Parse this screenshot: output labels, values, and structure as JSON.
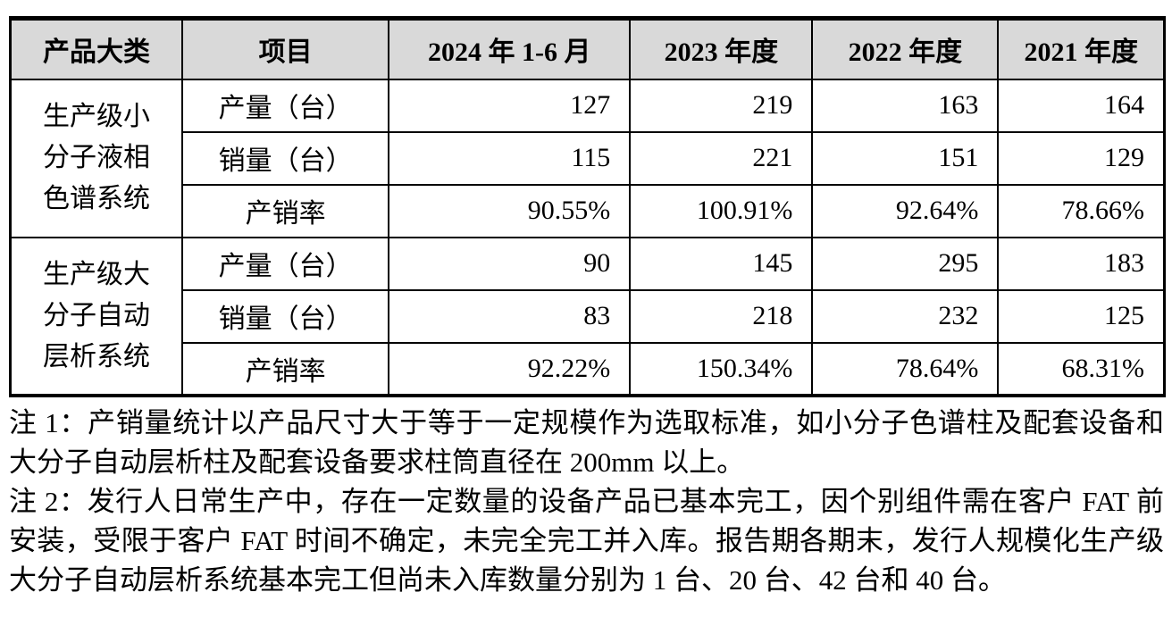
{
  "colors": {
    "header_bg": "#d9d9d9",
    "border": "#000000",
    "text": "#000000",
    "page_bg": "#ffffff"
  },
  "table": {
    "headers": {
      "category": "产品大类",
      "item": "项目",
      "period1": "2024 年 1-6 月",
      "period2": "2023 年度",
      "period3": "2022 年度",
      "period4": "2021 年度"
    },
    "groups": [
      {
        "category": "生产级小分子液相色谱系统",
        "category_lines": [
          "生产级小",
          "分子液相",
          "色谱系统"
        ],
        "rows": [
          {
            "item": "产量（台）",
            "values": [
              "127",
              "219",
              "163",
              "164"
            ]
          },
          {
            "item": "销量（台）",
            "values": [
              "115",
              "221",
              "151",
              "129"
            ]
          },
          {
            "item": "产销率",
            "values": [
              "90.55%",
              "100.91%",
              "92.64%",
              "78.66%"
            ]
          }
        ]
      },
      {
        "category": "生产级大分子自动层析系统",
        "category_lines": [
          "生产级大",
          "分子自动",
          "层析系统"
        ],
        "rows": [
          {
            "item": "产量（台）",
            "values": [
              "90",
              "145",
              "295",
              "183"
            ]
          },
          {
            "item": "销量（台）",
            "values": [
              "83",
              "218",
              "232",
              "125"
            ]
          },
          {
            "item": "产销率",
            "values": [
              "92.22%",
              "150.34%",
              "78.64%",
              "68.31%"
            ]
          }
        ]
      }
    ]
  },
  "notes": [
    "注 1：产销量统计以产品尺寸大于等于一定规模作为选取标准，如小分子色谱柱及配套设备和大分子自动层析柱及配套设备要求柱筒直径在 200mm 以上。",
    "注 2：发行人日常生产中，存在一定数量的设备产品已基本完工，因个别组件需在客户 FAT 前安装，受限于客户 FAT 时间不确定，未完全完工并入库。报告期各期末，发行人规模化生产级大分子自动层析系统基本完工但尚未入库数量分别为 1 台、20 台、42 台和 40 台。"
  ]
}
